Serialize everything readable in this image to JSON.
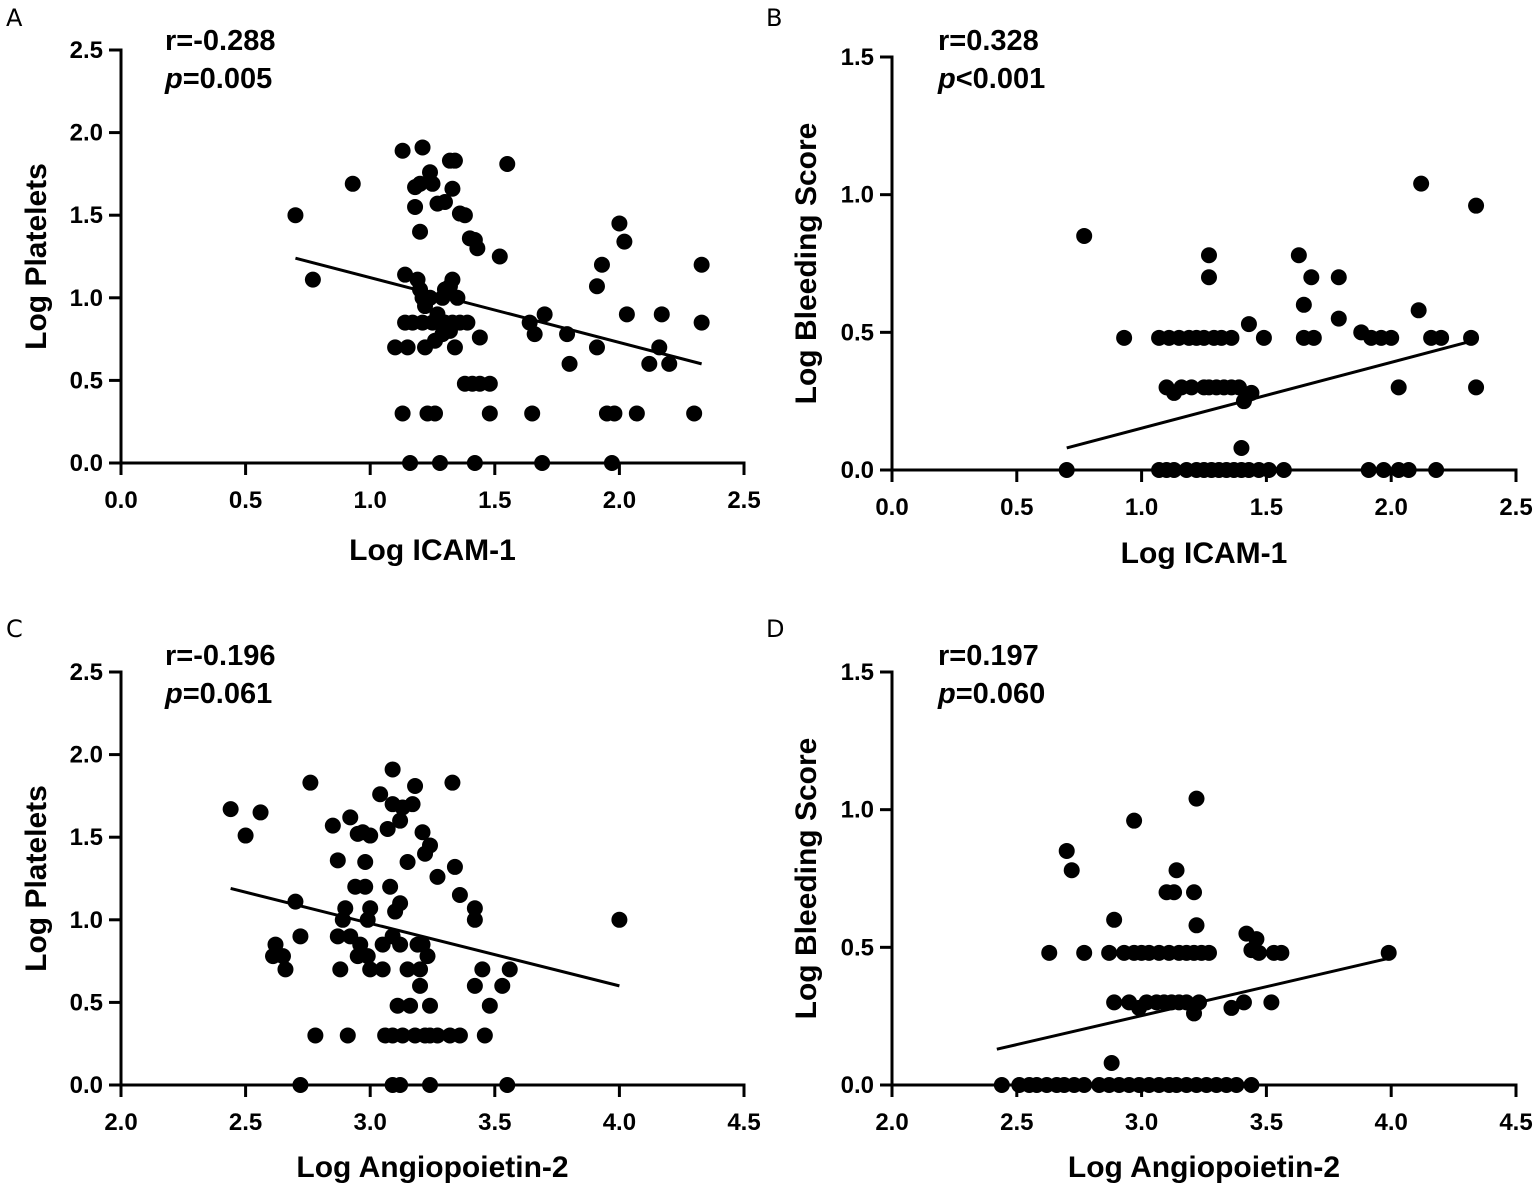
{
  "chart_data": [
    {
      "panel": "A",
      "type": "scatter",
      "xlabel": "Log ICAM-1",
      "ylabel": "Log Platelets",
      "xlim": [
        0.0,
        2.5
      ],
      "ylim": [
        0.0,
        2.5
      ],
      "x_ticks": [
        "0.0",
        "0.5",
        "1.0",
        "1.5",
        "2.0",
        "2.5"
      ],
      "y_ticks": [
        "0.0",
        "0.5",
        "1.0",
        "1.5",
        "2.0",
        "2.5"
      ],
      "stat_r": "r=-0.288",
      "stat_p_symbol": "p",
      "stat_p_value": "=0.005",
      "regression": {
        "x": [
          0.7,
          2.33
        ],
        "y": [
          1.24,
          0.6
        ]
      },
      "points": [
        [
          0.7,
          1.5
        ],
        [
          0.77,
          1.11
        ],
        [
          0.93,
          1.69
        ],
        [
          1.1,
          0.7
        ],
        [
          1.15,
          0.7
        ],
        [
          1.13,
          1.89
        ],
        [
          1.18,
          1.55
        ],
        [
          1.18,
          1.67
        ],
        [
          1.2,
          1.69
        ],
        [
          1.21,
          1.91
        ],
        [
          1.24,
          1.76
        ],
        [
          1.25,
          1.69
        ],
        [
          1.27,
          1.57
        ],
        [
          1.3,
          1.58
        ],
        [
          1.32,
          1.83
        ],
        [
          1.34,
          1.83
        ],
        [
          1.33,
          1.66
        ],
        [
          1.2,
          1.4
        ],
        [
          1.36,
          1.51
        ],
        [
          1.38,
          1.5
        ],
        [
          1.4,
          1.36
        ],
        [
          1.42,
          1.35
        ],
        [
          1.43,
          1.3
        ],
        [
          1.55,
          1.81
        ],
        [
          1.52,
          1.25
        ],
        [
          1.14,
          1.14
        ],
        [
          1.19,
          1.11
        ],
        [
          1.2,
          1.05
        ],
        [
          1.21,
          1.0
        ],
        [
          1.22,
          0.95
        ],
        [
          1.24,
          1.0
        ],
        [
          1.29,
          1.0
        ],
        [
          1.3,
          1.05
        ],
        [
          1.32,
          1.07
        ],
        [
          1.33,
          1.11
        ],
        [
          1.35,
          1.0
        ],
        [
          1.14,
          0.85
        ],
        [
          1.17,
          0.85
        ],
        [
          1.21,
          0.85
        ],
        [
          1.25,
          0.85
        ],
        [
          1.27,
          0.9
        ],
        [
          1.3,
          0.85
        ],
        [
          1.33,
          0.85
        ],
        [
          1.36,
          0.85
        ],
        [
          1.39,
          0.85
        ],
        [
          1.22,
          0.7
        ],
        [
          1.26,
          0.74
        ],
        [
          1.29,
          0.78
        ],
        [
          1.32,
          0.8
        ],
        [
          1.34,
          0.7
        ],
        [
          1.44,
          0.76
        ],
        [
          1.38,
          0.48
        ],
        [
          1.41,
          0.48
        ],
        [
          1.44,
          0.48
        ],
        [
          1.48,
          0.48
        ],
        [
          1.13,
          0.3
        ],
        [
          1.23,
          0.3
        ],
        [
          1.26,
          0.3
        ],
        [
          1.48,
          0.3
        ],
        [
          1.65,
          0.3
        ],
        [
          1.64,
          0.85
        ],
        [
          1.66,
          0.78
        ],
        [
          1.7,
          0.9
        ],
        [
          1.79,
          0.78
        ],
        [
          1.8,
          0.6
        ],
        [
          1.91,
          0.7
        ],
        [
          1.91,
          1.07
        ],
        [
          1.93,
          1.2
        ],
        [
          2.0,
          1.45
        ],
        [
          2.02,
          1.34
        ],
        [
          2.03,
          0.9
        ],
        [
          1.95,
          0.3
        ],
        [
          1.98,
          0.3
        ],
        [
          2.07,
          0.3
        ],
        [
          2.12,
          0.6
        ],
        [
          2.16,
          0.7
        ],
        [
          2.17,
          0.9
        ],
        [
          2.2,
          0.6
        ],
        [
          2.3,
          0.3
        ],
        [
          2.33,
          1.2
        ],
        [
          2.33,
          0.85
        ],
        [
          1.16,
          0.0
        ],
        [
          1.28,
          0.0
        ],
        [
          1.42,
          0.0
        ],
        [
          1.69,
          0.0
        ],
        [
          1.97,
          0.0
        ]
      ]
    },
    {
      "panel": "B",
      "type": "scatter",
      "xlabel": "Log ICAM-1",
      "ylabel": "Log Bleeding Score",
      "xlim": [
        0.0,
        2.5
      ],
      "ylim": [
        0.0,
        1.5
      ],
      "x_ticks": [
        "0.0",
        "0.5",
        "1.0",
        "1.5",
        "2.0",
        "2.5"
      ],
      "y_ticks": [
        "0.0",
        "0.5",
        "1.0",
        "1.5"
      ],
      "stat_r": "r=0.328",
      "stat_p_symbol": "p",
      "stat_p_value": "<0.001",
      "regression": {
        "x": [
          0.7,
          2.33
        ],
        "y": [
          0.08,
          0.47
        ]
      },
      "points": [
        [
          0.7,
          0.0
        ],
        [
          0.77,
          0.85
        ],
        [
          0.93,
          0.48
        ],
        [
          1.27,
          0.78
        ],
        [
          1.27,
          0.7
        ],
        [
          1.07,
          0.48
        ],
        [
          1.11,
          0.48
        ],
        [
          1.15,
          0.48
        ],
        [
          1.19,
          0.48
        ],
        [
          1.22,
          0.48
        ],
        [
          1.25,
          0.48
        ],
        [
          1.29,
          0.48
        ],
        [
          1.32,
          0.48
        ],
        [
          1.36,
          0.48
        ],
        [
          1.49,
          0.48
        ],
        [
          1.43,
          0.53
        ],
        [
          1.1,
          0.3
        ],
        [
          1.13,
          0.28
        ],
        [
          1.16,
          0.3
        ],
        [
          1.2,
          0.3
        ],
        [
          1.25,
          0.3
        ],
        [
          1.27,
          0.3
        ],
        [
          1.3,
          0.3
        ],
        [
          1.33,
          0.3
        ],
        [
          1.36,
          0.3
        ],
        [
          1.39,
          0.3
        ],
        [
          1.42,
          0.27
        ],
        [
          1.44,
          0.28
        ],
        [
          1.41,
          0.25
        ],
        [
          1.4,
          0.08
        ],
        [
          1.07,
          0.0
        ],
        [
          1.1,
          0.0
        ],
        [
          1.13,
          0.0
        ],
        [
          1.18,
          0.0
        ],
        [
          1.22,
          0.0
        ],
        [
          1.25,
          0.0
        ],
        [
          1.28,
          0.0
        ],
        [
          1.31,
          0.0
        ],
        [
          1.34,
          0.0
        ],
        [
          1.37,
          0.0
        ],
        [
          1.4,
          0.0
        ],
        [
          1.43,
          0.0
        ],
        [
          1.47,
          0.0
        ],
        [
          1.51,
          0.0
        ],
        [
          1.57,
          0.0
        ],
        [
          1.63,
          0.78
        ],
        [
          1.68,
          0.7
        ],
        [
          1.79,
          0.7
        ],
        [
          1.65,
          0.6
        ],
        [
          1.79,
          0.55
        ],
        [
          1.65,
          0.48
        ],
        [
          1.69,
          0.48
        ],
        [
          1.88,
          0.5
        ],
        [
          1.92,
          0.48
        ],
        [
          1.96,
          0.48
        ],
        [
          2.0,
          0.48
        ],
        [
          2.11,
          0.58
        ],
        [
          2.16,
          0.48
        ],
        [
          2.2,
          0.48
        ],
        [
          2.32,
          0.48
        ],
        [
          2.03,
          0.3
        ],
        [
          2.34,
          0.3
        ],
        [
          1.91,
          0.0
        ],
        [
          1.97,
          0.0
        ],
        [
          2.03,
          0.0
        ],
        [
          2.07,
          0.0
        ],
        [
          2.18,
          0.0
        ],
        [
          2.12,
          1.04
        ],
        [
          2.34,
          0.96
        ]
      ]
    },
    {
      "panel": "C",
      "type": "scatter",
      "xlabel": "Log Angiopoietin-2",
      "ylabel": "Log Platelets",
      "xlim": [
        2.0,
        4.5
      ],
      "ylim": [
        0.0,
        2.5
      ],
      "x_ticks": [
        "2.0",
        "2.5",
        "3.0",
        "3.5",
        "4.0",
        "4.5"
      ],
      "y_ticks": [
        "0.0",
        "0.5",
        "1.0",
        "1.5",
        "2.0",
        "2.5"
      ],
      "stat_r": "r=-0.196",
      "stat_p_symbol": "p",
      "stat_p_value": "=0.061",
      "regression": {
        "x": [
          2.44,
          4.0
        ],
        "y": [
          1.19,
          0.6
        ]
      },
      "points": [
        [
          2.44,
          1.67
        ],
        [
          2.5,
          1.51
        ],
        [
          2.56,
          1.65
        ],
        [
          2.76,
          1.83
        ],
        [
          2.7,
          1.11
        ],
        [
          2.72,
          0.9
        ],
        [
          2.62,
          0.85
        ],
        [
          2.61,
          0.78
        ],
        [
          2.65,
          0.78
        ],
        [
          2.66,
          0.7
        ],
        [
          2.85,
          1.57
        ],
        [
          2.87,
          1.36
        ],
        [
          2.92,
          1.62
        ],
        [
          2.95,
          1.52
        ],
        [
          2.97,
          1.53
        ],
        [
          3.0,
          1.51
        ],
        [
          2.98,
          1.35
        ],
        [
          2.94,
          1.2
        ],
        [
          2.98,
          1.2
        ],
        [
          2.9,
          1.07
        ],
        [
          2.89,
          1.0
        ],
        [
          2.87,
          0.9
        ],
        [
          2.92,
          0.9
        ],
        [
          2.99,
          1.0
        ],
        [
          3.0,
          1.07
        ],
        [
          2.96,
          0.85
        ],
        [
          2.99,
          0.78
        ],
        [
          2.95,
          0.78
        ],
        [
          3.0,
          0.7
        ],
        [
          3.05,
          0.7
        ],
        [
          2.88,
          0.7
        ],
        [
          3.05,
          0.85
        ],
        [
          3.08,
          1.2
        ],
        [
          3.1,
          1.05
        ],
        [
          3.12,
          1.1
        ],
        [
          3.09,
          0.9
        ],
        [
          3.12,
          0.85
        ],
        [
          3.04,
          1.76
        ],
        [
          3.09,
          1.91
        ],
        [
          3.09,
          1.7
        ],
        [
          3.13,
          1.68
        ],
        [
          3.17,
          1.7
        ],
        [
          3.18,
          1.81
        ],
        [
          3.07,
          1.55
        ],
        [
          3.12,
          1.6
        ],
        [
          3.15,
          1.35
        ],
        [
          3.21,
          1.53
        ],
        [
          3.22,
          1.4
        ],
        [
          3.24,
          1.45
        ],
        [
          3.27,
          1.26
        ],
        [
          3.33,
          1.83
        ],
        [
          3.34,
          1.32
        ],
        [
          3.36,
          1.15
        ],
        [
          3.42,
          1.07
        ],
        [
          3.42,
          1.0
        ],
        [
          3.21,
          0.85
        ],
        [
          3.23,
          0.78
        ],
        [
          3.2,
          0.7
        ],
        [
          3.2,
          0.6
        ],
        [
          3.15,
          0.7
        ],
        [
          3.19,
          0.85
        ],
        [
          3.11,
          0.48
        ],
        [
          3.16,
          0.48
        ],
        [
          3.24,
          0.48
        ],
        [
          3.42,
          0.6
        ],
        [
          3.45,
          0.7
        ],
        [
          3.48,
          0.48
        ],
        [
          3.53,
          0.6
        ],
        [
          3.56,
          0.7
        ],
        [
          2.78,
          0.3
        ],
        [
          2.91,
          0.3
        ],
        [
          3.06,
          0.3
        ],
        [
          3.09,
          0.3
        ],
        [
          3.13,
          0.3
        ],
        [
          3.18,
          0.3
        ],
        [
          3.22,
          0.3
        ],
        [
          3.24,
          0.3
        ],
        [
          3.27,
          0.3
        ],
        [
          3.32,
          0.3
        ],
        [
          3.36,
          0.3
        ],
        [
          3.46,
          0.3
        ],
        [
          4.0,
          1.0
        ],
        [
          2.72,
          0.0
        ],
        [
          3.09,
          0.0
        ],
        [
          3.12,
          0.0
        ],
        [
          3.24,
          0.0
        ],
        [
          3.55,
          0.0
        ]
      ]
    },
    {
      "panel": "D",
      "type": "scatter",
      "xlabel": "Log Angiopoietin-2",
      "ylabel": "Log Bleeding Score",
      "xlim": [
        2.0,
        4.5
      ],
      "ylim": [
        0.0,
        1.5
      ],
      "x_ticks": [
        "2.0",
        "2.5",
        "3.0",
        "3.5",
        "4.0",
        "4.5"
      ],
      "y_ticks": [
        "0.0",
        "0.5",
        "1.0",
        "1.5"
      ],
      "stat_r": "r=0.197",
      "stat_p_symbol": "p",
      "stat_p_value": "=0.060",
      "regression": {
        "x": [
          2.42,
          3.99
        ],
        "y": [
          0.13,
          0.46
        ]
      },
      "points": [
        [
          2.7,
          0.85
        ],
        [
          2.72,
          0.78
        ],
        [
          2.63,
          0.48
        ],
        [
          2.77,
          0.48
        ],
        [
          2.87,
          0.48
        ],
        [
          2.93,
          0.48
        ],
        [
          2.97,
          0.48
        ],
        [
          3.0,
          0.48
        ],
        [
          3.03,
          0.48
        ],
        [
          3.07,
          0.48
        ],
        [
          3.11,
          0.48
        ],
        [
          3.15,
          0.48
        ],
        [
          3.18,
          0.48
        ],
        [
          3.21,
          0.48
        ],
        [
          3.24,
          0.48
        ],
        [
          3.27,
          0.48
        ],
        [
          2.89,
          0.6
        ],
        [
          2.97,
          0.96
        ],
        [
          3.1,
          0.7
        ],
        [
          3.13,
          0.7
        ],
        [
          3.14,
          0.78
        ],
        [
          3.21,
          0.7
        ],
        [
          3.22,
          0.58
        ],
        [
          3.22,
          1.04
        ],
        [
          3.42,
          0.55
        ],
        [
          3.46,
          0.53
        ],
        [
          3.44,
          0.49
        ],
        [
          3.47,
          0.48
        ],
        [
          3.53,
          0.48
        ],
        [
          3.56,
          0.48
        ],
        [
          2.89,
          0.3
        ],
        [
          2.95,
          0.3
        ],
        [
          2.99,
          0.28
        ],
        [
          3.02,
          0.3
        ],
        [
          3.06,
          0.3
        ],
        [
          3.09,
          0.3
        ],
        [
          3.12,
          0.3
        ],
        [
          3.15,
          0.3
        ],
        [
          3.18,
          0.3
        ],
        [
          3.21,
          0.26
        ],
        [
          3.23,
          0.3
        ],
        [
          3.36,
          0.28
        ],
        [
          3.41,
          0.3
        ],
        [
          3.52,
          0.3
        ],
        [
          2.88,
          0.08
        ],
        [
          2.44,
          0.0
        ],
        [
          2.51,
          0.0
        ],
        [
          2.55,
          0.0
        ],
        [
          2.58,
          0.0
        ],
        [
          2.62,
          0.0
        ],
        [
          2.66,
          0.0
        ],
        [
          2.69,
          0.0
        ],
        [
          2.73,
          0.0
        ],
        [
          2.77,
          0.0
        ],
        [
          2.83,
          0.0
        ],
        [
          2.87,
          0.0
        ],
        [
          2.91,
          0.0
        ],
        [
          2.95,
          0.0
        ],
        [
          2.99,
          0.0
        ],
        [
          3.03,
          0.0
        ],
        [
          3.07,
          0.0
        ],
        [
          3.11,
          0.0
        ],
        [
          3.14,
          0.0
        ],
        [
          3.18,
          0.0
        ],
        [
          3.22,
          0.0
        ],
        [
          3.26,
          0.0
        ],
        [
          3.3,
          0.0
        ],
        [
          3.34,
          0.0
        ],
        [
          3.38,
          0.0
        ],
        [
          3.44,
          0.0
        ],
        [
          3.99,
          0.48
        ]
      ]
    }
  ]
}
